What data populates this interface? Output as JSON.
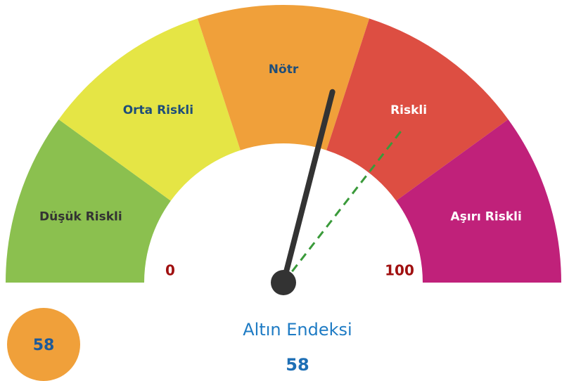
{
  "chart_data": {
    "type": "gauge",
    "title": "Altın Endeksi",
    "categories": [
      "Düşük Riskli",
      "Orta Riskli",
      "Nötr",
      "Riskli",
      "Aşırı Riskli"
    ],
    "bins": [
      0,
      20,
      40,
      60,
      80,
      100
    ],
    "colors": [
      "#8bc04f",
      "#e5e545",
      "#f0a03a",
      "#dd4e42",
      "#c0217a"
    ],
    "label_colors": [
      "#333333",
      "#1f4e79",
      "#1f4e79",
      "#ffffff",
      "#ffffff"
    ],
    "value": 58,
    "needle_color": "#333333",
    "reference_value": 71,
    "reference_color": "#3a9a3a"
  }
}
